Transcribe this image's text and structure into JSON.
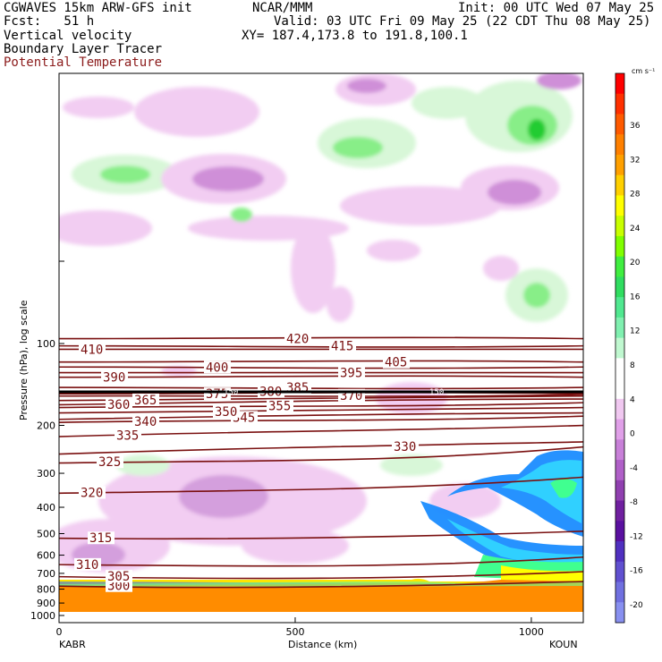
{
  "header": {
    "line1_left": "CGWAVES 15km ARW-GFS init",
    "line1_mid": "NCAR/MMM",
    "line1_right": "Init: 00 UTC Wed 07 May 25",
    "fcst": "Fcst:   51 h",
    "valid": "Valid: 03 UTC Fri 09 May 25 (22 CDT Thu 08 May 25)",
    "field1": "Vertical velocity",
    "field2": "Boundary Layer Tracer",
    "field3": "Potential Temperature",
    "xy": "XY= 187.4,173.8 to 191.8,100.1",
    "field3_color": "#8b1a1a"
  },
  "chart_data": {
    "type": "heatmap",
    "xlabel": "Distance (km)",
    "ylabel": "Pressure (hPa), log scale",
    "x_ticks": [
      "0",
      "500",
      "1000"
    ],
    "x_tick_values": [
      0,
      500,
      1000
    ],
    "x_end_labels": [
      "KABR",
      "KOUN"
    ],
    "xlim": [
      0,
      1110
    ],
    "y_scale": "log",
    "y_ticks": [
      "100",
      "200",
      "300",
      "400",
      "500",
      "600",
      "700",
      "800",
      "900",
      "1000"
    ],
    "y_tick_values": [
      100,
      200,
      300,
      400,
      500,
      600,
      700,
      800,
      900,
      1000
    ],
    "colorbar": {
      "unit": "cm s⁻¹",
      "tick_labels": [
        "36",
        "32",
        "28",
        "24",
        "20",
        "16",
        "12",
        "8",
        "4",
        "0",
        "-4",
        "-8",
        "-12",
        "-16",
        "-20"
      ],
      "colors": [
        "#ff0000",
        "#ff3000",
        "#ff5a00",
        "#ff8000",
        "#ffa000",
        "#ffd000",
        "#ffff00",
        "#c8ff00",
        "#80ff00",
        "#40ee40",
        "#30dd60",
        "#50e890",
        "#80f0b0",
        "#c0f8d0",
        "#ffffff",
        "#ffffff",
        "#f0c8f0",
        "#e0a0e8",
        "#c880d8",
        "#b060c8",
        "#9040b0",
        "#7020a0",
        "#5a10a0",
        "#5030c0",
        "#6050d0",
        "#7070e0",
        "#8890f0"
      ]
    },
    "isentropes": [
      {
        "value": 300,
        "label": "300",
        "p_left": 780,
        "p_right": 750
      },
      {
        "value": 305,
        "label": "305",
        "p_left": 720,
        "p_right": 690
      },
      {
        "value": 310,
        "label": "310",
        "p_left": 650,
        "p_right": 610
      },
      {
        "value": 315,
        "label": "315",
        "p_left": 520,
        "p_right": 490
      },
      {
        "value": 320,
        "label": "320",
        "p_left": 355,
        "p_right": 310
      },
      {
        "value": 325,
        "label": "325",
        "p_left": 275,
        "p_right": 240
      },
      {
        "value": 330,
        "label": "330",
        "p_left": 255,
        "p_right": 230
      },
      {
        "value": 335,
        "label": "335",
        "p_left": 220,
        "p_right": 200
      },
      {
        "value": 340,
        "label": "340",
        "p_left": 195,
        "p_right": 185
      },
      {
        "value": 345,
        "label": "345",
        "p_left": 190,
        "p_right": 180
      },
      {
        "value": 350,
        "label": "350",
        "p_left": 180,
        "p_right": 172
      },
      {
        "value": 355,
        "label": "355",
        "p_left": 172,
        "p_right": 165
      },
      {
        "value": 360,
        "label": "360",
        "p_left": 168,
        "p_right": 160
      },
      {
        "value": 365,
        "label": "365",
        "p_left": 162,
        "p_right": 156
      },
      {
        "value": 370,
        "label": "370",
        "p_left": 156,
        "p_right": 154
      },
      {
        "value": 375,
        "label": "375",
        "p_left": 153,
        "p_right": 153
      },
      {
        "value": 380,
        "label": "380",
        "p_left": 150,
        "p_right": 150
      },
      {
        "value": 385,
        "label": "385",
        "p_left": 145,
        "p_right": 145
      },
      {
        "value": 390,
        "label": "390",
        "p_left": 133,
        "p_right": 133
      },
      {
        "value": 395,
        "label": "395",
        "p_left": 128,
        "p_right": 128
      },
      {
        "value": 400,
        "label": "400",
        "p_left": 122,
        "p_right": 122
      },
      {
        "value": 405,
        "label": "405",
        "p_left": 117,
        "p_right": 117
      },
      {
        "value": 410,
        "label": "410",
        "p_left": 105,
        "p_right": 105
      },
      {
        "value": 415,
        "label": "415",
        "p_left": 102,
        "p_right": 102
      },
      {
        "value": 420,
        "label": "420",
        "p_left": 96,
        "p_right": 96
      }
    ],
    "tracer_label": "150"
  }
}
